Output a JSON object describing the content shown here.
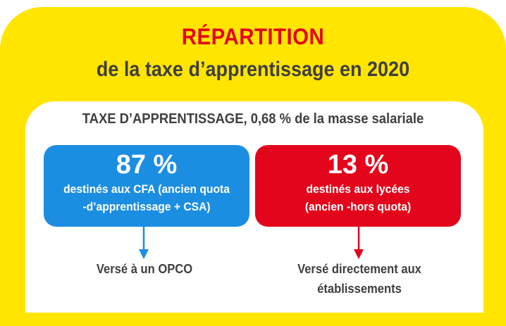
{
  "header": {
    "title": "RÉPARTITION",
    "subtitle": "de la taxe d’apprentissage en  2020"
  },
  "tax_line": "TAXE D’APPRENTISSAGE, 0,68 % de la masse salariale",
  "boxes": [
    {
      "percent": "87 %",
      "line1": "destinés aux CFA (ancien quota",
      "line2": "-d’apprentissage + CSA)",
      "color": "#1b8ee2",
      "destination": "Versé à un OPCO"
    },
    {
      "percent": "13 %",
      "line1": "destinés aux lycées",
      "line2": "(ancien -hors quota)",
      "color": "#e3051b",
      "destination_line1": "Versé directement aux",
      "destination_line2": "établissements"
    }
  ],
  "colors": {
    "background": "#ffe500",
    "title": "#e3051b",
    "text": "#3f3f3f"
  }
}
